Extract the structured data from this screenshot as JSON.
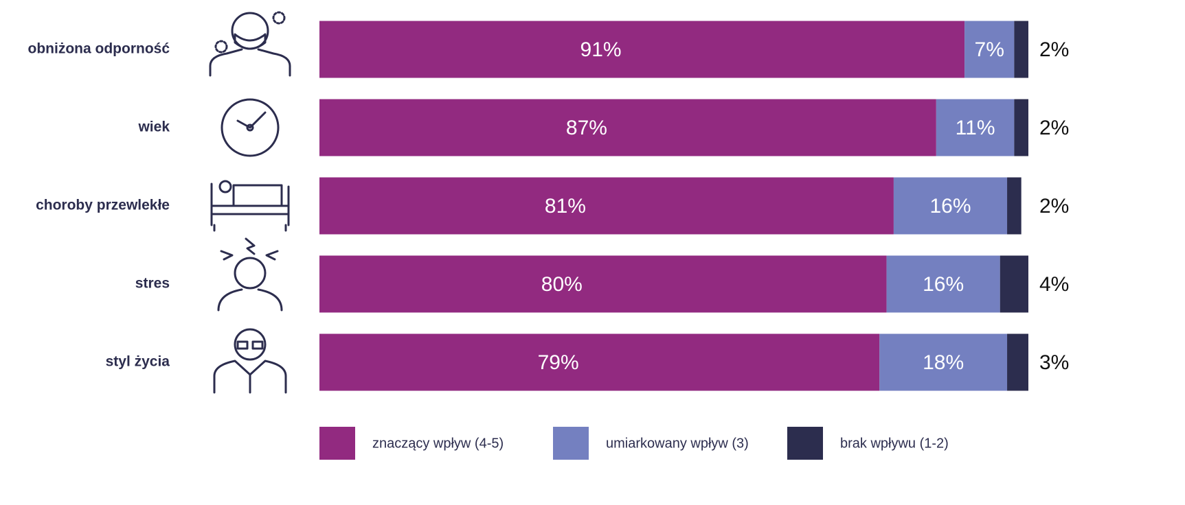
{
  "chart_data": {
    "type": "stacked-barh",
    "categories": [
      "obniżona odporność",
      "wiek",
      "choroby przewlekłe",
      "stres",
      "styl życia"
    ],
    "xlim": [
      0,
      100
    ],
    "series": [
      {
        "name": "znaczący wpływ (4-5)",
        "color": "#922a80",
        "values": [
          91,
          87,
          81,
          80,
          79
        ],
        "value_labels": [
          "91%",
          "87%",
          "81%",
          "80%",
          "79%"
        ]
      },
      {
        "name": "umiarkowany wpływ (3)",
        "color": "#7480c0",
        "values": [
          7,
          11,
          16,
          16,
          18
        ],
        "value_labels": [
          "7%",
          "11%",
          "16%",
          "16%",
          "18%"
        ]
      },
      {
        "name": "brak wpływu (1-2)",
        "color": "#2c2d4e",
        "values": [
          2,
          2,
          2,
          4,
          3
        ],
        "value_labels": [
          "2%",
          "2%",
          "2%",
          "4%",
          "3%"
        ]
      }
    ]
  }
}
